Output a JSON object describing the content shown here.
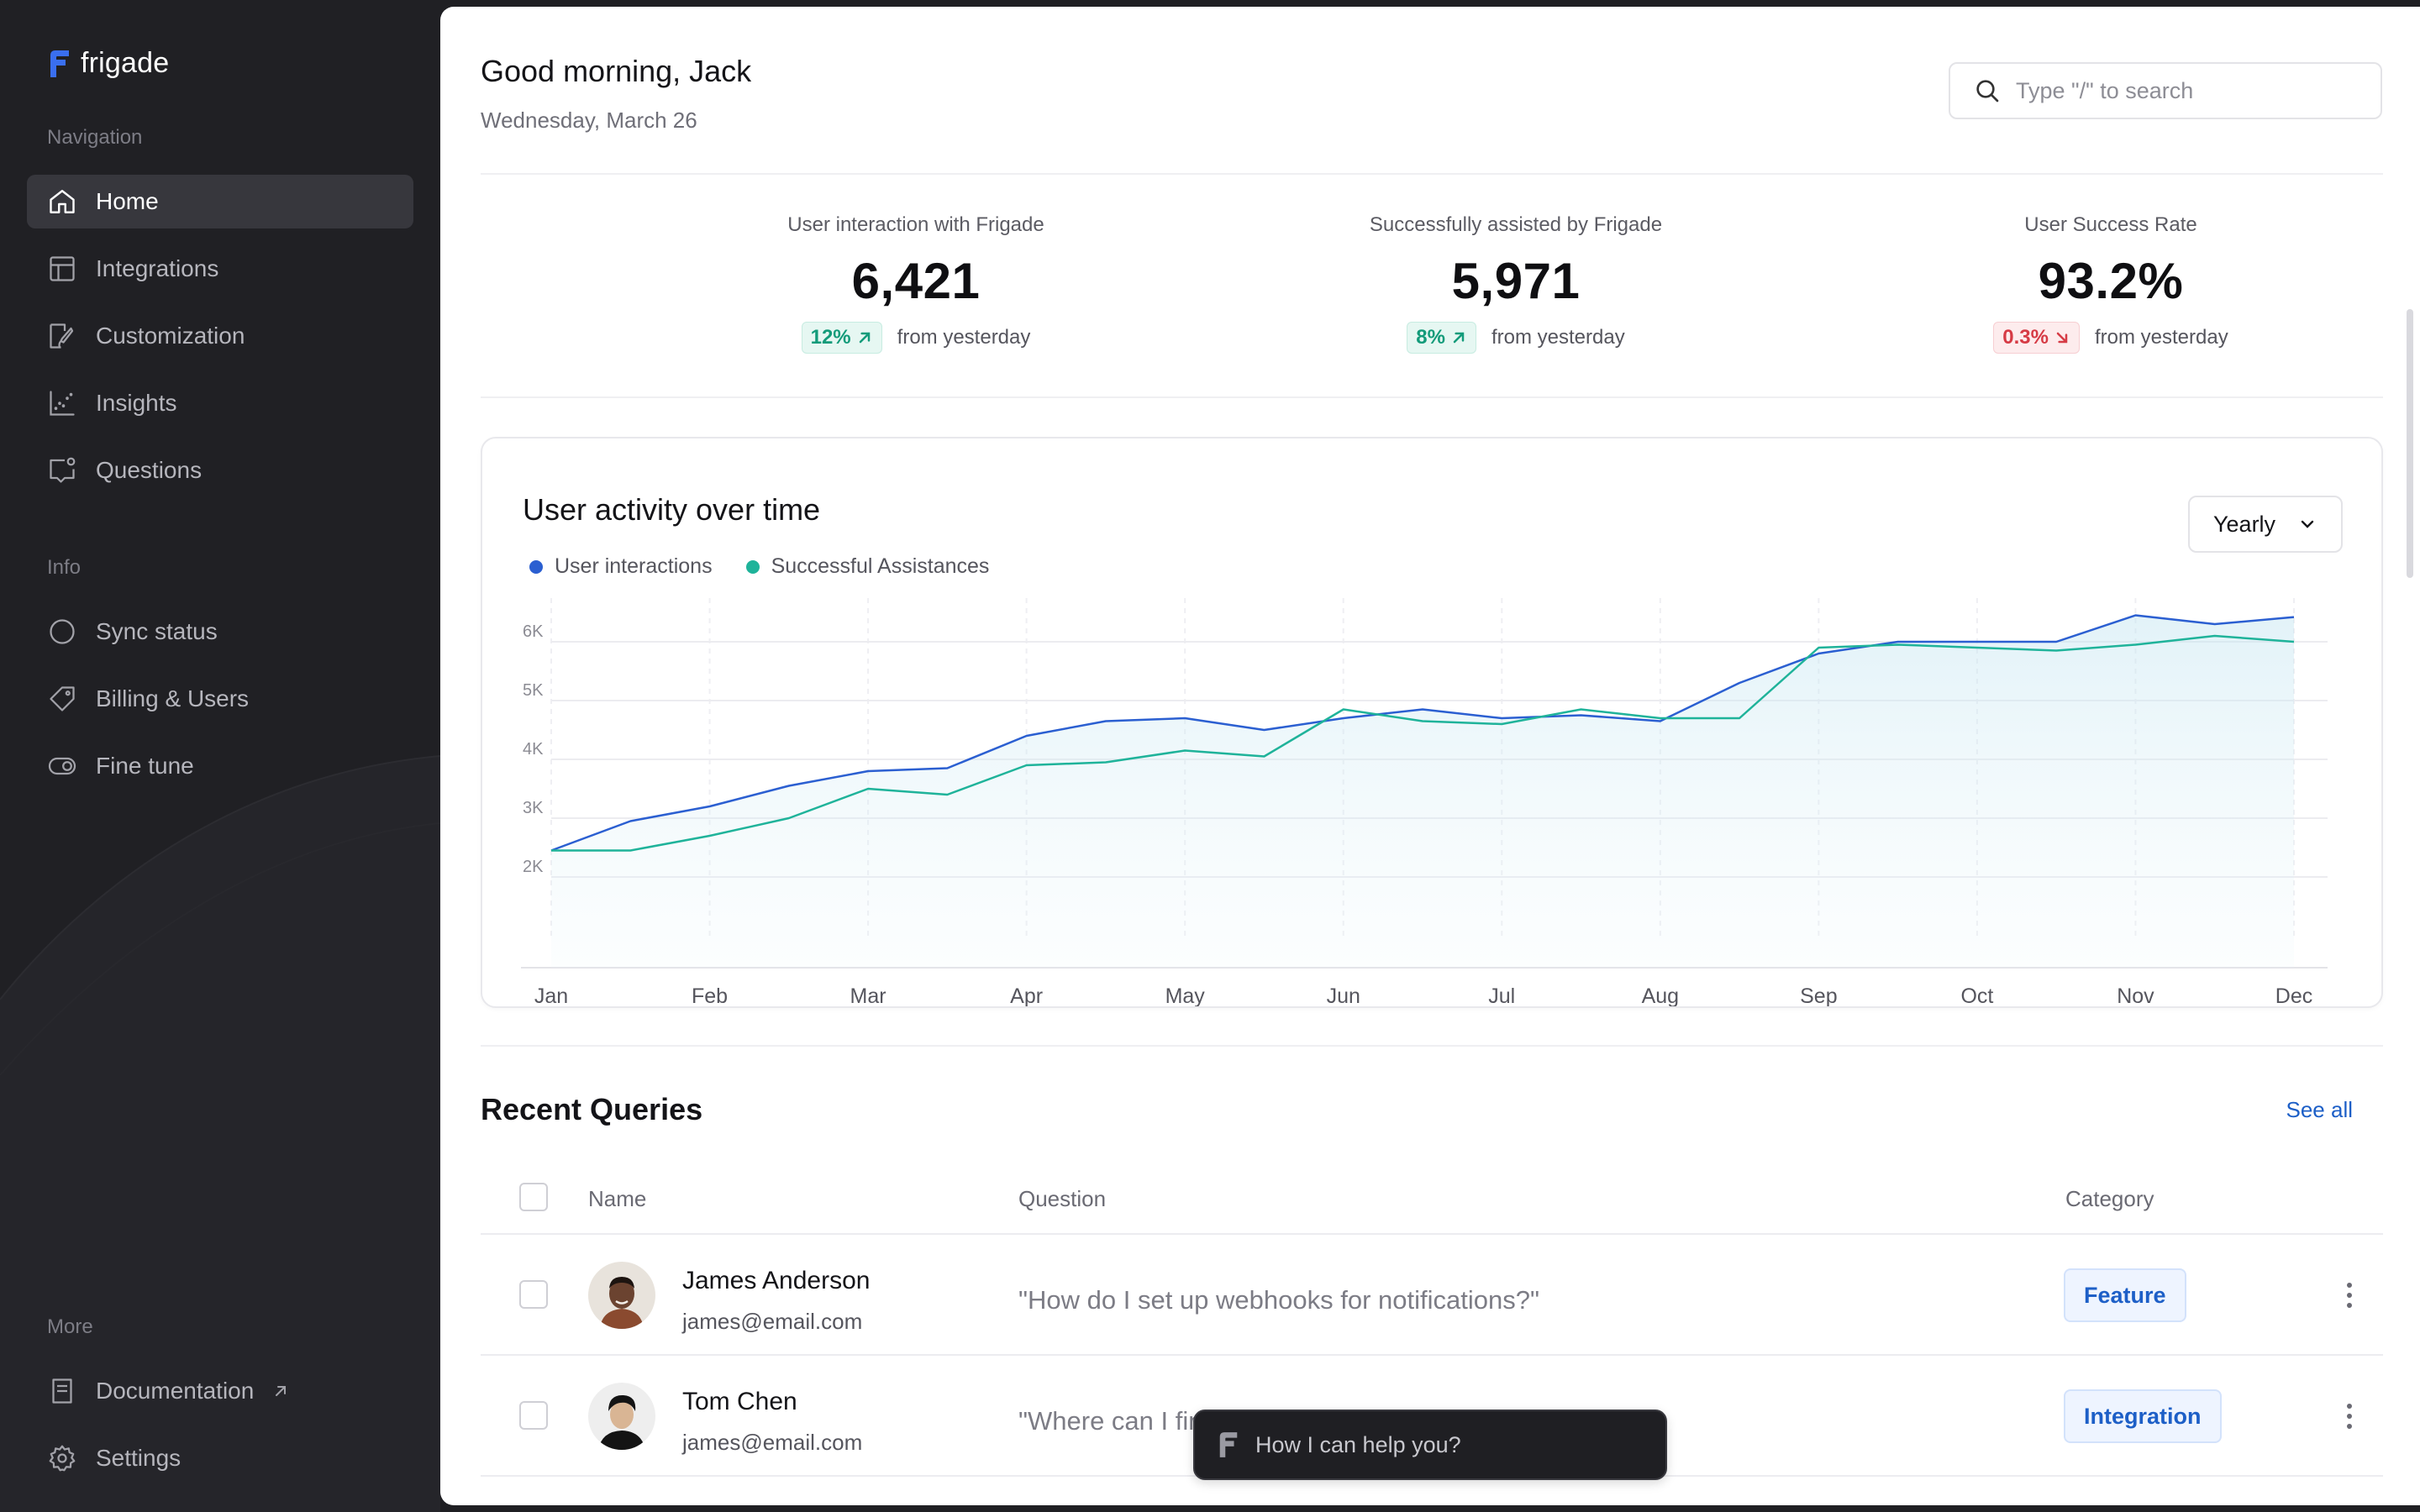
{
  "brand": {
    "name": "frigade"
  },
  "sidebar": {
    "navigation_label": "Navigation",
    "navigation": [
      {
        "label": "Home",
        "icon": "home-icon",
        "active": true
      },
      {
        "label": "Integrations",
        "icon": "grid-icon"
      },
      {
        "label": "Customization",
        "icon": "brush-icon"
      },
      {
        "label": "Insights",
        "icon": "chart-icon"
      },
      {
        "label": "Questions",
        "icon": "message-icon"
      }
    ],
    "info_label": "Info",
    "info": [
      {
        "label": "Sync status",
        "icon": "circle-icon"
      },
      {
        "label": "Billing & Users",
        "icon": "tag-icon"
      },
      {
        "label": "Fine tune",
        "icon": "toggle-icon"
      }
    ],
    "more_label": "More",
    "more": [
      {
        "label": "Documentation",
        "icon": "book-icon"
      },
      {
        "label": "Settings",
        "icon": "gear-icon"
      }
    ]
  },
  "header": {
    "greeting": "Good morning, Jack",
    "date": "Wednesday, March 26",
    "search_placeholder": "Type \"/\" to search"
  },
  "stats": [
    {
      "label": "User interaction with Frigade",
      "value": "6,421",
      "change": "12%",
      "direction": "up",
      "suffix": "from yesterday"
    },
    {
      "label": "Successfully assisted by Frigade",
      "value": "5,971",
      "change": "8%",
      "direction": "up",
      "suffix": "from yesterday"
    },
    {
      "label": "User Success Rate",
      "value": "93.2%",
      "change": "0.3%",
      "direction": "down",
      "suffix": "from yesterday"
    }
  ],
  "chart_card": {
    "title": "User activity over time",
    "range_select": "Yearly"
  },
  "chart_data": {
    "type": "line",
    "title": "User activity over time",
    "categories": [
      "Jan",
      "Feb",
      "Mar",
      "Apr",
      "May",
      "Jun",
      "Jul",
      "Aug",
      "Sep",
      "Oct",
      "Nov",
      "Dec"
    ],
    "y_ticks": [
      "2K",
      "3K",
      "4K",
      "5K",
      "6K"
    ],
    "ylim": [
      1000,
      6600
    ],
    "grid": true,
    "legend_position": "top-left",
    "x": [
      0,
      0.5,
      1,
      1.5,
      2,
      2.5,
      3,
      3.5,
      4,
      4.5,
      5,
      5.5,
      6,
      6.5,
      7,
      7.5,
      8,
      8.5,
      9,
      9.5,
      10,
      10.5,
      11
    ],
    "series": [
      {
        "name": "User interactions",
        "color": "#2b5fd1",
        "values": [
          2450,
          2950,
          3200,
          3550,
          3800,
          3850,
          4400,
          4650,
          4700,
          4500,
          4700,
          4850,
          4700,
          4750,
          4650,
          5300,
          5800,
          6000,
          6000,
          6000,
          6450,
          6300,
          6420
        ]
      },
      {
        "name": "Successful Assistances",
        "color": "#1fb39a",
        "values": [
          2450,
          2450,
          2700,
          3000,
          3500,
          3400,
          3900,
          3950,
          4150,
          4050,
          4850,
          4650,
          4600,
          4850,
          4700,
          4700,
          5900,
          5950,
          5900,
          5850,
          5950,
          6100,
          6000
        ]
      }
    ]
  },
  "queries": {
    "title": "Recent Queries",
    "see_all": "See all",
    "columns": {
      "name": "Name",
      "question": "Question",
      "category": "Category"
    },
    "rows": [
      {
        "name": "James Anderson",
        "email": "james@email.com",
        "question": "\"How do I set up webhooks for notifications?\"",
        "category": "Feature"
      },
      {
        "name": "Tom Chen",
        "email": "james@email.com",
        "question": "\"Where can I find my API key?\"",
        "category": "Integration"
      }
    ]
  },
  "assistant": {
    "placeholder": "How I can help you?"
  },
  "colors": {
    "accent": "#1d5fc7",
    "success": "#139b7a",
    "danger": "#d63b45",
    "sidebar": "#202024"
  }
}
